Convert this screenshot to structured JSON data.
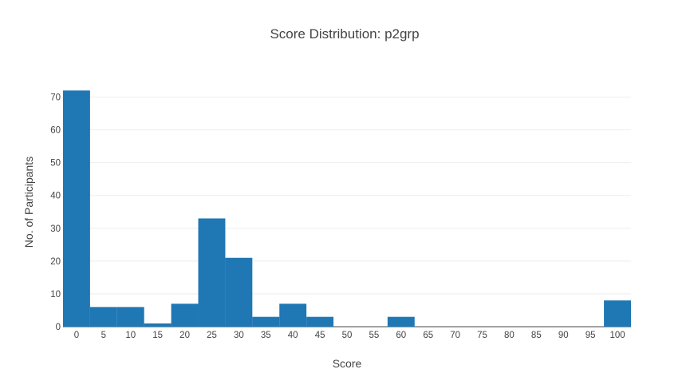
{
  "chart_data": {
    "type": "bar",
    "title": "Score Distribution: p2grp",
    "xlabel": "Score",
    "ylabel": "No. of Participants",
    "bin_width": 5,
    "x": [
      0,
      5,
      10,
      15,
      20,
      25,
      30,
      35,
      40,
      45,
      50,
      55,
      60,
      65,
      70,
      75,
      80,
      85,
      90,
      95,
      100
    ],
    "values": [
      72,
      6,
      6,
      1,
      7,
      33,
      21,
      3,
      7,
      3,
      0,
      0,
      3,
      0,
      0,
      0,
      0,
      0,
      0,
      0,
      8
    ],
    "xticks": [
      "0",
      "5",
      "10",
      "15",
      "20",
      "25",
      "30",
      "35",
      "40",
      "45",
      "50",
      "55",
      "60",
      "65",
      "70",
      "75",
      "80",
      "85",
      "90",
      "95",
      "100"
    ],
    "yticks": [
      "0",
      "10",
      "20",
      "30",
      "40",
      "50",
      "60",
      "70"
    ],
    "xlim": [
      -2.5,
      102.5
    ],
    "ylim": [
      0,
      75
    ],
    "bar_color": "#1f77b4",
    "grid": true,
    "legend": "none"
  }
}
